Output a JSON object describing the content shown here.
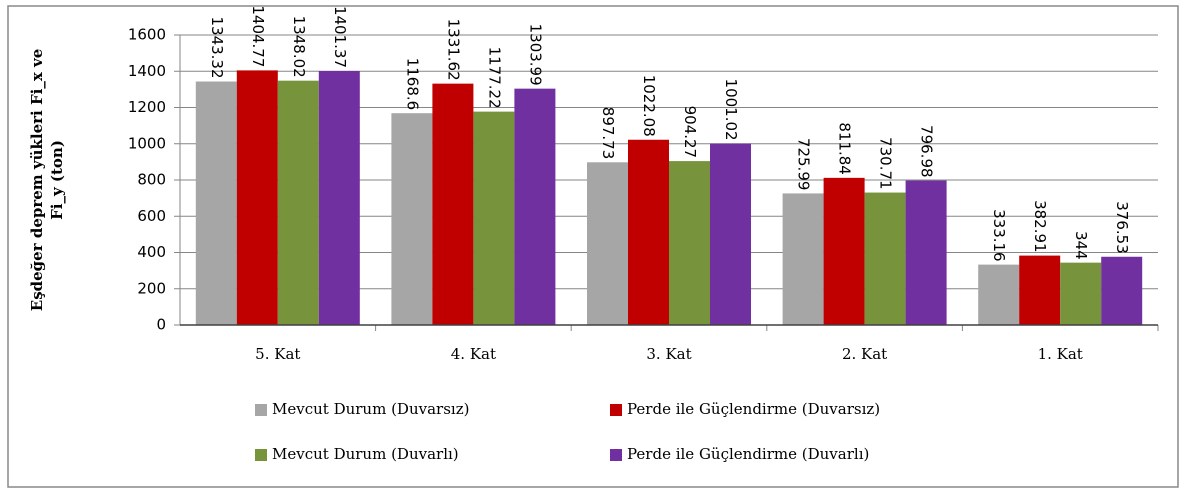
{
  "chart_data": {
    "type": "bar",
    "ylabel": [
      "Eşdeğer deprem yükleri Fi_x ve",
      "Fi_y  (ton)"
    ],
    "categories": [
      "5. Kat",
      "4. Kat",
      "3. Kat",
      "2. Kat",
      "1. Kat"
    ],
    "series": [
      {
        "name": "Mevcut Durum (Duvarsız)",
        "color": "#a6a6a6",
        "values": [
          1343.32,
          1168.6,
          897.73,
          725.99,
          333.16
        ]
      },
      {
        "name": "Perde ile Güçlendirme (Duvarsız)",
        "color": "#c00000",
        "values": [
          1404.77,
          1331.62,
          1022.08,
          811.84,
          382.91
        ]
      },
      {
        "name": "Mevcut Durum (Duvarlı)",
        "color": "#77933c",
        "values": [
          1348.02,
          1177.22,
          904.27,
          730.71,
          344
        ]
      },
      {
        "name": "Perde ile Güçlendirme (Duvarlı)",
        "color": "#7030a0",
        "values": [
          1401.37,
          1303.99,
          1001.02,
          796.98,
          376.53
        ]
      }
    ],
    "ylim": [
      0,
      1600
    ],
    "yticks": [
      0,
      200,
      400,
      600,
      800,
      1000,
      1200,
      1400,
      1600
    ],
    "grid": true
  }
}
